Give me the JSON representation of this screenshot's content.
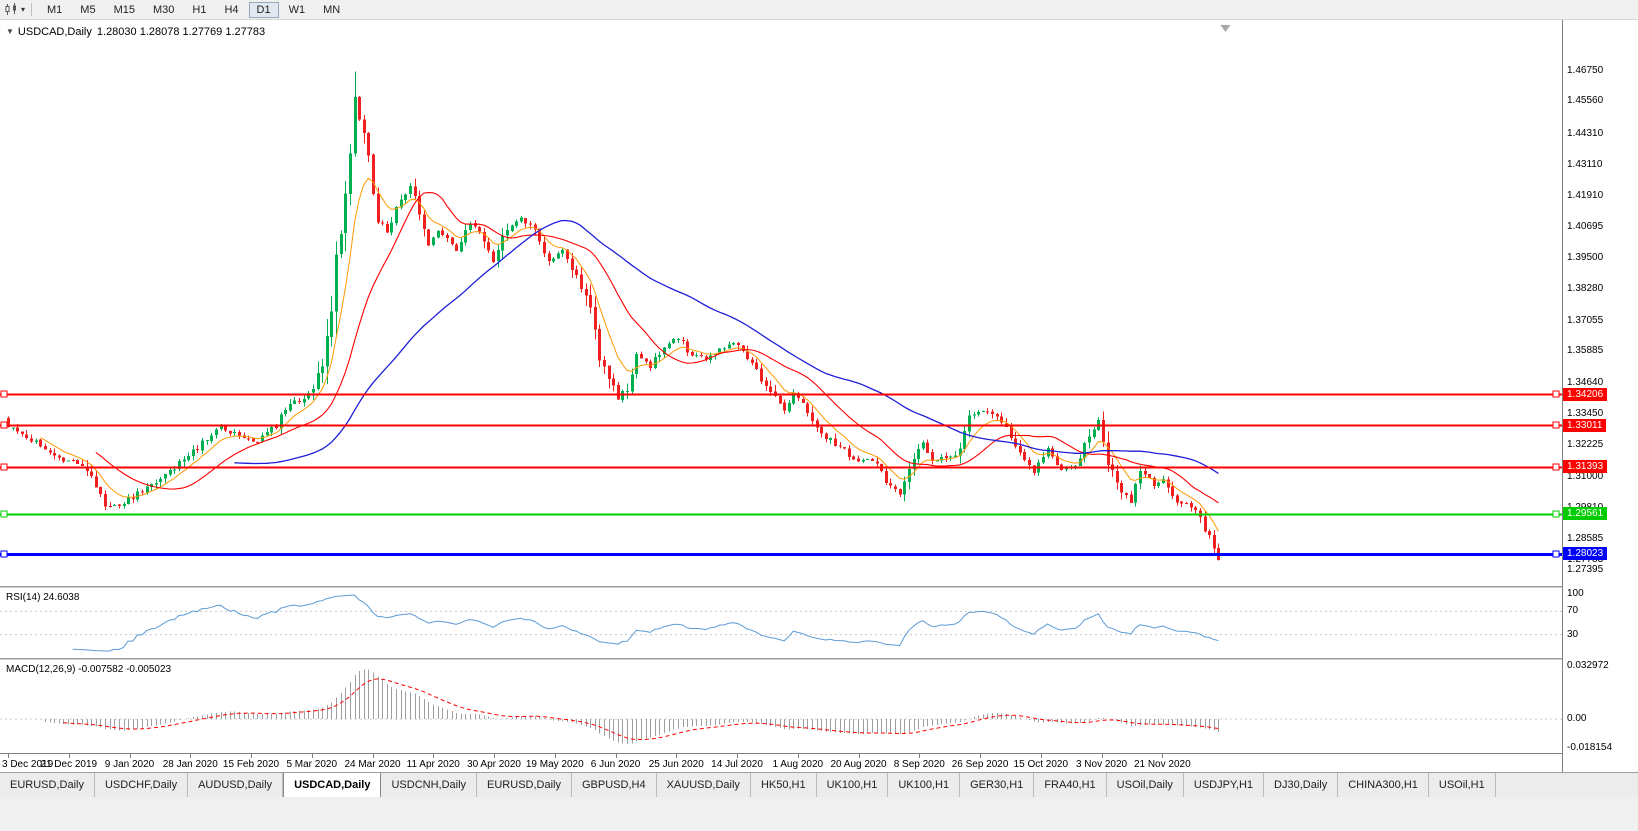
{
  "toolbar": {
    "timeframes": [
      "M1",
      "M5",
      "M15",
      "M30",
      "H1",
      "H4",
      "D1",
      "W1",
      "MN"
    ],
    "active_timeframe": "D1"
  },
  "chart": {
    "collapse_icon": "▼",
    "title": "USDCAD,Daily",
    "ohlc_text": "1.28030 1.28078 1.27769 1.27783"
  },
  "price_axis": {
    "ticks": [
      "1.46750",
      "1.45560",
      "1.44310",
      "1.43110",
      "1.41910",
      "1.40695",
      "1.39500",
      "1.38280",
      "1.37055",
      "1.35885",
      "1.34640",
      "1.33450",
      "1.32225",
      "1.31000",
      "1.29810",
      "1.28585",
      "1.27395"
    ],
    "current_price": "1.27783"
  },
  "levels": [
    {
      "price": 1.34206,
      "label": "1.34206",
      "color": "#ff0000",
      "width": 2
    },
    {
      "price": 1.33011,
      "label": "1.33011",
      "color": "#ff0000",
      "width": 2
    },
    {
      "price": 1.31393,
      "label": "1.31393",
      "color": "#ff0000",
      "width": 2
    },
    {
      "price": 1.29561,
      "label": "1.29561",
      "color": "#00cc00",
      "width": 2
    },
    {
      "price": 1.28023,
      "label": "1.28023",
      "color": "#0000ff",
      "width": 3
    }
  ],
  "rsi": {
    "label": "RSI(14) 24.6038",
    "value": 24.6038,
    "ticks": [
      "100",
      "70",
      "30"
    ],
    "levels": [
      70,
      30
    ]
  },
  "macd": {
    "label": "MACD(12,26,9) -0.007582 -0.005023",
    "values": [
      -0.007582,
      -0.005023
    ],
    "ticks": [
      "0.032972",
      "0.00",
      "-0.018154"
    ]
  },
  "date_axis": [
    "3 Dec 2019",
    "21 Dec 2019",
    "9 Jan 2020",
    "28 Jan 2020",
    "15 Feb 2020",
    "5 Mar 2020",
    "24 Mar 2020",
    "11 Apr 2020",
    "30 Apr 2020",
    "19 May 2020",
    "6 Jun 2020",
    "25 Jun 2020",
    "14 Jul 2020",
    "1 Aug 2020",
    "20 Aug 2020",
    "8 Sep 2020",
    "26 Sep 2020",
    "15 Oct 2020",
    "3 Nov 2020",
    "21 Nov 2020"
  ],
  "tabs": {
    "items": [
      "EURUSD,Daily",
      "USDCHF,Daily",
      "AUDUSD,Daily",
      "USDCAD,Daily",
      "USDCNH,Daily",
      "EURUSD,Daily",
      "GBPUSD,H4",
      "XAUUSD,Daily",
      "HK50,H1",
      "UK100,H1",
      "UK100,H1",
      "GER30,H1",
      "FRA40,H1",
      "USOil,Daily",
      "USDJPY,H1",
      "DJ30,Daily",
      "CHINA300,H1",
      "USOil,H1"
    ],
    "active_index": 3
  },
  "chart_data": {
    "type": "candlestick",
    "symbol": "USDCAD",
    "timeframe": "Daily",
    "num_candles": 263,
    "price_range": [
      1.27,
      1.481
    ],
    "macd_range": [
      -0.0185,
      0.0335
    ],
    "indicators": [
      "RSI(14)",
      "MACD(12,26,9)",
      "MA fast",
      "MA mid",
      "MA slow"
    ],
    "colors": {
      "up": "#00b050",
      "down": "#f02020",
      "ma_fast": "#ff9900",
      "ma_mid": "#ff0000",
      "ma_slow": "#1f1fd7",
      "rsi": "#5b9bd5",
      "macd_hist": "#9e9e9e",
      "macd_signal": "#ff0000"
    },
    "anchors": [
      [
        0,
        1.33
      ],
      [
        4,
        1.3255
      ],
      [
        8,
        1.3215
      ],
      [
        12,
        1.3165
      ],
      [
        14,
        1.317
      ],
      [
        17,
        1.3125
      ],
      [
        19,
        1.306
      ],
      [
        21,
        1.2995
      ],
      [
        23,
        1.2985
      ],
      [
        26,
        1.301
      ],
      [
        30,
        1.3055
      ],
      [
        34,
        1.311
      ],
      [
        38,
        1.3165
      ],
      [
        42,
        1.323
      ],
      [
        46,
        1.329
      ],
      [
        50,
        1.326
      ],
      [
        54,
        1.3235
      ],
      [
        58,
        1.33
      ],
      [
        61,
        1.3385
      ],
      [
        64,
        1.3405
      ],
      [
        66,
        1.3445
      ],
      [
        68,
        1.356
      ],
      [
        70,
        1.379
      ],
      [
        72,
        1.408
      ],
      [
        74,
        1.438
      ],
      [
        75,
        1.456
      ],
      [
        76,
        1.448
      ],
      [
        78,
        1.435
      ],
      [
        80,
        1.411
      ],
      [
        82,
        1.405
      ],
      [
        85,
        1.417
      ],
      [
        87,
        1.423
      ],
      [
        89,
        1.412
      ],
      [
        91,
        1.4
      ],
      [
        93,
        1.406
      ],
      [
        95,
        1.403
      ],
      [
        97,
        1.398
      ],
      [
        100,
        1.409
      ],
      [
        103,
        1.401
      ],
      [
        105,
        1.394
      ],
      [
        108,
        1.407
      ],
      [
        111,
        1.411
      ],
      [
        114,
        1.405
      ],
      [
        117,
        1.393
      ],
      [
        120,
        1.398
      ],
      [
        123,
        1.388
      ],
      [
        126,
        1.375
      ],
      [
        128,
        1.358
      ],
      [
        130,
        1.348
      ],
      [
        132,
        1.34
      ],
      [
        134,
        1.345
      ],
      [
        136,
        1.358
      ],
      [
        139,
        1.353
      ],
      [
        142,
        1.361
      ],
      [
        145,
        1.364
      ],
      [
        148,
        1.357
      ],
      [
        151,
        1.356
      ],
      [
        154,
        1.359
      ],
      [
        157,
        1.362
      ],
      [
        160,
        1.357
      ],
      [
        163,
        1.348
      ],
      [
        166,
        1.34
      ],
      [
        168,
        1.336
      ],
      [
        170,
        1.342
      ],
      [
        172,
        1.339
      ],
      [
        175,
        1.329
      ],
      [
        178,
        1.324
      ],
      [
        181,
        1.32
      ],
      [
        184,
        1.316
      ],
      [
        187,
        1.317
      ],
      [
        190,
        1.309
      ],
      [
        193,
        1.303
      ],
      [
        195,
        1.313
      ],
      [
        198,
        1.323
      ],
      [
        200,
        1.316
      ],
      [
        203,
        1.318
      ],
      [
        206,
        1.32
      ],
      [
        208,
        1.332
      ],
      [
        211,
        1.336
      ],
      [
        214,
        1.333
      ],
      [
        217,
        1.326
      ],
      [
        220,
        1.318
      ],
      [
        222,
        1.312
      ],
      [
        225,
        1.321
      ],
      [
        228,
        1.313
      ],
      [
        231,
        1.315
      ],
      [
        234,
        1.325
      ],
      [
        236,
        1.331
      ],
      [
        238,
        1.316
      ],
      [
        240,
        1.306
      ],
      [
        243,
        1.301
      ],
      [
        245,
        1.313
      ],
      [
        248,
        1.307
      ],
      [
        250,
        1.309
      ],
      [
        253,
        1.3
      ],
      [
        256,
        1.299
      ],
      [
        258,
        1.293
      ],
      [
        260,
        1.287
      ],
      [
        262,
        1.27783
      ]
    ]
  }
}
